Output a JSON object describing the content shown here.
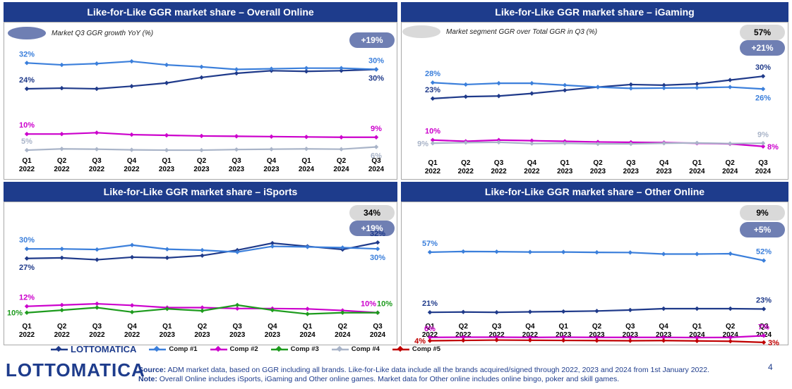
{
  "series_names": [
    "LOTTOMATICA",
    "Comp #1",
    "Comp #2",
    "Comp #3",
    "Comp #4",
    "Comp #5"
  ],
  "series_colors": {
    "LOTTOMATICA": "#1f3a8a",
    "Comp #1": "#3b7fdb",
    "Comp #2": "#cc00cc",
    "Comp #3": "#1e9b1e",
    "Comp #4": "#a9b4c8",
    "Comp #5": "#c00000"
  },
  "header_color": "#1e3c8c",
  "pill_blue_color": "#6f7fb3",
  "pill_grey_color": "#d9d9d9",
  "notes": {
    "growth": "Market Q3 GGR growth YoY (%)",
    "segment": "Market segment GGR over Total GGR in Q3 (%)"
  },
  "legend": {
    "items": [
      {
        "name": "LOTTOMATICA",
        "is_logo": true
      },
      {
        "name": "Comp #1"
      },
      {
        "name": "Comp #2"
      },
      {
        "name": "Comp #3"
      },
      {
        "name": "Comp #4"
      },
      {
        "name": "Comp #5"
      }
    ]
  },
  "brand": {
    "logo_text": "LOTTOMATICA"
  },
  "footer": {
    "source_label": "Source:",
    "source_text": "ADM market data, based on GGR including all brands. Like-for-Like data include all the brands acquired/signed through 2022, 2023 and 2024 from 1st January 2022.",
    "note_label": "Note:",
    "note_text": "Overall Online includes iSports, iGaming and Other online games. Market data for Other online includes online bingo, poker and skill games.",
    "page_number": "4"
  },
  "chart_data": [
    {
      "type": "line",
      "title": "Like-for-Like GGR market share – Overall Online",
      "categories": [
        "Q1 2022",
        "Q2 2022",
        "Q3 2022",
        "Q4 2022",
        "Q1 2023",
        "Q2 2023",
        "Q3 2023",
        "Q4 2023",
        "Q1 2024",
        "Q2 2024",
        "Q3 2024"
      ],
      "ylim": [
        0,
        36
      ],
      "series": [
        {
          "name": "LOTTOMATICA",
          "values": [
            24,
            24.2,
            24,
            24.8,
            25.8,
            27.5,
            28.8,
            29.6,
            29.4,
            29.6,
            30
          ]
        },
        {
          "name": "Comp #1",
          "values": [
            32,
            31.4,
            31.8,
            32.5,
            31.4,
            30.8,
            30,
            30.2,
            30.4,
            30.4,
            30
          ]
        },
        {
          "name": "Comp #2",
          "values": [
            10,
            10,
            10.4,
            9.8,
            9.6,
            9.4,
            9.3,
            9.2,
            9.1,
            9,
            9
          ]
        },
        {
          "name": "Comp #4",
          "values": [
            5,
            5.4,
            5.3,
            5.1,
            5,
            5,
            5.2,
            5.3,
            5.4,
            5.3,
            6
          ]
        }
      ],
      "labels": [
        {
          "text": "32%",
          "series": "Comp #1",
          "index": 0,
          "pos": "above"
        },
        {
          "text": "24%",
          "series": "LOTTOMATICA",
          "index": 0,
          "pos": "above"
        },
        {
          "text": "30%",
          "series": "Comp #1",
          "index": 10,
          "pos": "above"
        },
        {
          "text": "30%",
          "series": "LOTTOMATICA",
          "index": 10,
          "pos": "below"
        },
        {
          "text": "10%",
          "series": "Comp #2",
          "index": 0,
          "pos": "above"
        },
        {
          "text": "5%",
          "series": "Comp #4",
          "index": 0,
          "pos": "above"
        },
        {
          "text": "9%",
          "series": "Comp #2",
          "index": 10,
          "pos": "above"
        },
        {
          "text": "6%",
          "series": "Comp #4",
          "index": 10,
          "pos": "below"
        }
      ],
      "pills": [
        {
          "text": "+19%",
          "style": "blue"
        }
      ]
    },
    {
      "type": "line",
      "title": "Like-for-Like GGR market share – iGaming",
      "categories": [
        "Q1 2022",
        "Q2 2022",
        "Q3 2022",
        "Q4 2022",
        "Q1 2023",
        "Q2 2023",
        "Q3 2023",
        "Q4 2023",
        "Q1 2024",
        "Q2 2024",
        "Q3 2024"
      ],
      "ylim": [
        0,
        36
      ],
      "series": [
        {
          "name": "LOTTOMATICA",
          "values": [
            23,
            23.6,
            23.8,
            24.6,
            25.6,
            26.6,
            27.4,
            27.2,
            27.6,
            28.8,
            30
          ]
        },
        {
          "name": "Comp #1",
          "values": [
            28,
            27.4,
            27.8,
            27.8,
            27.2,
            26.6,
            26.2,
            26.3,
            26.4,
            26.6,
            26
          ]
        },
        {
          "name": "Comp #2",
          "values": [
            10,
            9.6,
            10,
            9.8,
            9.6,
            9.4,
            9.3,
            9.2,
            9,
            8.8,
            8
          ]
        },
        {
          "name": "Comp #4",
          "values": [
            9,
            9.2,
            9.3,
            8.9,
            9,
            8.8,
            8.8,
            9,
            9.1,
            8.9,
            9
          ]
        }
      ],
      "labels": [
        {
          "text": "28%",
          "series": "Comp #1",
          "index": 0,
          "pos": "above"
        },
        {
          "text": "23%",
          "series": "LOTTOMATICA",
          "index": 0,
          "pos": "above"
        },
        {
          "text": "30%",
          "series": "LOTTOMATICA",
          "index": 10,
          "pos": "above"
        },
        {
          "text": "26%",
          "series": "Comp #1",
          "index": 10,
          "pos": "below"
        },
        {
          "text": "10%",
          "series": "Comp #2",
          "index": 0,
          "pos": "above"
        },
        {
          "text": "9%",
          "series": "Comp #4",
          "index": 0,
          "pos": "left"
        },
        {
          "text": "9%",
          "series": "Comp #4",
          "index": 10,
          "pos": "above"
        },
        {
          "text": "8%",
          "series": "Comp #2",
          "index": 10,
          "pos": "right"
        }
      ],
      "pills": [
        {
          "text": "57%",
          "style": "grey"
        },
        {
          "text": "+21%",
          "style": "blue"
        }
      ]
    },
    {
      "type": "line",
      "title": "Like-for-Like GGR market share – iSports",
      "categories": [
        "Q1 2022",
        "Q2 2022",
        "Q3 2022",
        "Q4 2022",
        "Q1 2023",
        "Q2 2023",
        "Q3 2023",
        "Q4 2023",
        "Q1 2024",
        "Q2 2024",
        "Q3 2024"
      ],
      "ylim": [
        0,
        36
      ],
      "series": [
        {
          "name": "LOTTOMATICA",
          "values": [
            27,
            27.2,
            26.6,
            27.4,
            27.2,
            27.9,
            29.6,
            31.8,
            30.8,
            29.8,
            32
          ]
        },
        {
          "name": "Comp #1",
          "values": [
            30,
            30,
            29.8,
            31.2,
            29.9,
            29.6,
            29,
            30.8,
            30.6,
            30.4,
            30
          ]
        },
        {
          "name": "Comp #2",
          "values": [
            12,
            12.4,
            12.8,
            12.3,
            11.6,
            11.6,
            11.3,
            11.3,
            11.2,
            10.7,
            10
          ]
        },
        {
          "name": "Comp #3",
          "values": [
            10,
            10.8,
            11.6,
            10.2,
            11.2,
            10.6,
            12.4,
            10.8,
            9.6,
            10,
            10
          ]
        }
      ],
      "labels": [
        {
          "text": "30%",
          "series": "Comp #1",
          "index": 0,
          "pos": "above"
        },
        {
          "text": "27%",
          "series": "LOTTOMATICA",
          "index": 0,
          "pos": "below"
        },
        {
          "text": "32%",
          "series": "LOTTOMATICA",
          "index": 10,
          "pos": "above"
        },
        {
          "text": "30%",
          "series": "Comp #1",
          "index": 10,
          "pos": "below"
        },
        {
          "text": "12%",
          "series": "Comp #2",
          "index": 0,
          "pos": "above"
        },
        {
          "text": "10%",
          "series": "Comp #3",
          "index": 0,
          "pos": "left"
        },
        {
          "text": "10%",
          "series": "Comp #2",
          "index": 10,
          "pos": "aboveleft"
        },
        {
          "text": "10%",
          "series": "Comp #3",
          "index": 10,
          "pos": "aboveright"
        }
      ],
      "pills": [
        {
          "text": "34%",
          "style": "grey"
        },
        {
          "text": "+19%",
          "style": "blue"
        }
      ]
    },
    {
      "type": "line",
      "title": "Like-for-Like GGR market share – Other Online",
      "categories": [
        "Q1 2022",
        "Q2 2022",
        "Q3 2022",
        "Q4 2022",
        "Q1 2023",
        "Q2 2023",
        "Q3 2023",
        "Q4 2023",
        "Q1 2024",
        "Q2 2024",
        "Q3 2024"
      ],
      "ylim": [
        0,
        62
      ],
      "series": [
        {
          "name": "Comp #1",
          "values": [
            57,
            57.4,
            57.3,
            57.1,
            57.1,
            56.9,
            56.8,
            55.9,
            55.9,
            56.1,
            52
          ]
        },
        {
          "name": "LOTTOMATICA",
          "values": [
            21,
            21.2,
            21,
            21.3,
            21.5,
            21.8,
            22.4,
            23.2,
            23.2,
            23.2,
            23
          ]
        },
        {
          "name": "Comp #2",
          "values": [
            6,
            6.1,
            6.1,
            6,
            6.1,
            6,
            6,
            6,
            5.9,
            6,
            7
          ]
        },
        {
          "name": "Comp #5",
          "values": [
            4,
            4.2,
            4.4,
            4.3,
            4.2,
            4.1,
            4,
            4.1,
            3.9,
            3.7,
            3
          ]
        }
      ],
      "labels": [
        {
          "text": "57%",
          "series": "Comp #1",
          "index": 0,
          "pos": "above"
        },
        {
          "text": "52%",
          "series": "Comp #1",
          "index": 10,
          "pos": "above"
        },
        {
          "text": "21%",
          "series": "LOTTOMATICA",
          "index": 0,
          "pos": "above"
        },
        {
          "text": "23%",
          "series": "LOTTOMATICA",
          "index": 10,
          "pos": "above"
        },
        {
          "text": "6%",
          "series": "Comp #2",
          "index": 0,
          "pos": "above"
        },
        {
          "text": "4%",
          "series": "Comp #5",
          "index": 0,
          "pos": "left"
        },
        {
          "text": "7%",
          "series": "Comp #2",
          "index": 10,
          "pos": "above"
        },
        {
          "text": "3%",
          "series": "Comp #5",
          "index": 10,
          "pos": "right"
        }
      ],
      "pills": [
        {
          "text": "9%",
          "style": "grey"
        },
        {
          "text": "+5%",
          "style": "blue"
        }
      ]
    }
  ]
}
